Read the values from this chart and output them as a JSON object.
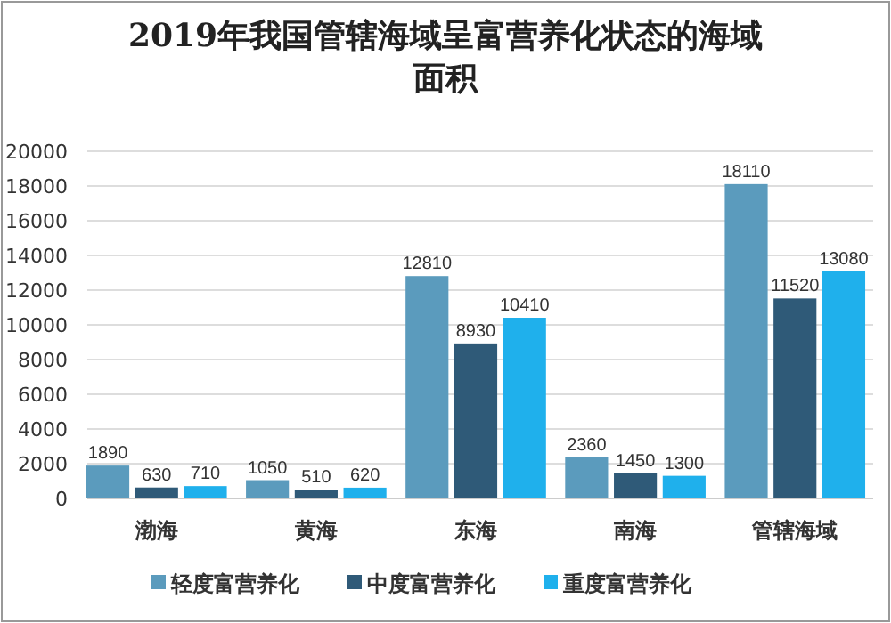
{
  "chart_data": {
    "type": "bar",
    "title": "2019年我国管辖海域呈富营养化状态的海域面积",
    "categories": [
      "渤海",
      "黄海",
      "东海",
      "南海",
      "管辖海域"
    ],
    "series": [
      {
        "name": "轻度富营养化",
        "color": "#5b9bbd",
        "values": [
          1890,
          1050,
          12810,
          2360,
          18110
        ]
      },
      {
        "name": "中度富营养化",
        "color": "#2f5a78",
        "values": [
          630,
          510,
          8930,
          1450,
          11520
        ]
      },
      {
        "name": "重度富营养化",
        "color": "#1fb0ec",
        "values": [
          710,
          620,
          10410,
          1300,
          13080
        ]
      }
    ],
    "ylim": [
      0,
      20000
    ],
    "yticks": [
      0,
      2000,
      4000,
      6000,
      8000,
      10000,
      12000,
      14000,
      16000,
      18000,
      20000
    ],
    "grid": "y",
    "legend": "bottom",
    "data_labels": true
  }
}
